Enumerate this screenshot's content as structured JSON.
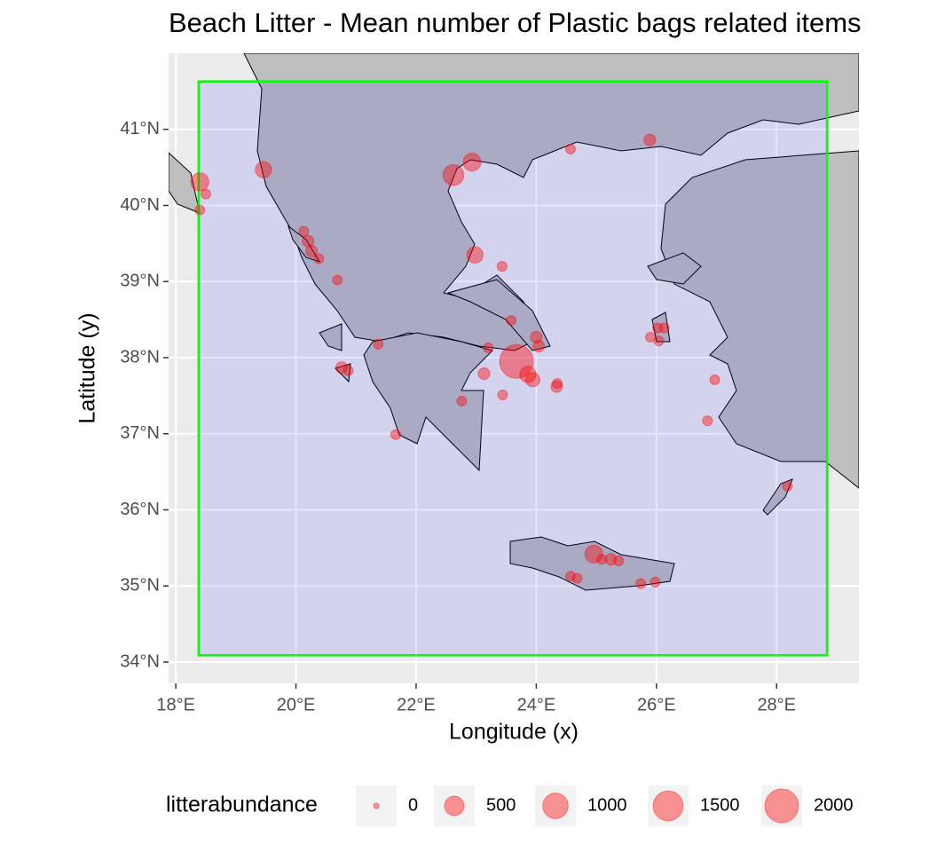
{
  "chart_data": {
    "type": "scatter",
    "title": "Beach Litter - Mean number of Plastic bags related items",
    "x_label": "Longitude (x)",
    "y_label": "Latitude (y)",
    "xlim": [
      17.88,
      29.37
    ],
    "ylim": [
      33.72,
      42.0
    ],
    "xticks": [
      {
        "value": 18,
        "label": "18°E"
      },
      {
        "value": 20,
        "label": "20°E"
      },
      {
        "value": 22,
        "label": "22°E"
      },
      {
        "value": 24,
        "label": "24°E"
      },
      {
        "value": 26,
        "label": "26°E"
      },
      {
        "value": 28,
        "label": "28°E"
      }
    ],
    "yticks": [
      {
        "value": 34,
        "label": "34°N"
      },
      {
        "value": 35,
        "label": "35°N"
      },
      {
        "value": 36,
        "label": "36°N"
      },
      {
        "value": 37,
        "label": "37°N"
      },
      {
        "value": 38,
        "label": "38°N"
      },
      {
        "value": 39,
        "label": "39°N"
      },
      {
        "value": 40,
        "label": "40°N"
      },
      {
        "value": 41,
        "label": "41°N"
      }
    ],
    "grid": true,
    "bbox": {
      "xlim": [
        18.38,
        28.84
      ],
      "ylim": [
        34.09,
        41.63
      ],
      "color": "#00ff00"
    },
    "color": "#ff0000",
    "x": [
      18.4,
      18.5,
      18.4,
      19.46,
      22.62,
      22.93,
      24.57,
      25.89,
      20.13,
      20.2,
      20.26,
      20.38,
      20.69,
      22.98,
      23.43,
      23.58,
      21.37,
      20.76,
      20.87,
      21.66,
      22.76,
      23.2,
      23.13,
      23.67,
      23.86,
      23.94,
      24.0,
      24.04,
      23.44,
      24.34,
      24.35,
      25.9,
      26.04,
      26.02,
      26.13,
      26.97,
      26.85,
      28.18,
      24.96,
      25.09,
      25.24,
      25.37,
      24.57,
      24.68,
      25.74,
      25.98
    ],
    "y": [
      40.31,
      40.15,
      39.94,
      40.47,
      40.4,
      40.57,
      40.74,
      40.86,
      39.66,
      39.53,
      39.4,
      39.3,
      39.02,
      39.35,
      39.2,
      38.49,
      38.18,
      37.87,
      37.83,
      36.99,
      37.43,
      38.13,
      37.79,
      37.95,
      37.78,
      37.71,
      38.27,
      38.15,
      37.51,
      37.62,
      37.66,
      38.27,
      38.22,
      38.39,
      38.39,
      37.71,
      37.17,
      36.31,
      35.42,
      35.35,
      35.35,
      35.33,
      35.13,
      35.1,
      35.03,
      35.05
    ],
    "sizes": [
      400,
      50,
      50,
      300,
      600,
      400,
      50,
      100,
      50,
      100,
      100,
      50,
      50,
      300,
      50,
      50,
      50,
      100,
      50,
      50,
      50,
      50,
      100,
      2000,
      300,
      200,
      100,
      100,
      50,
      100,
      50,
      50,
      50,
      50,
      50,
      50,
      50,
      50,
      400,
      50,
      100,
      50,
      50,
      50,
      50,
      50
    ],
    "size_legend": {
      "title": "litterabundance",
      "values": [
        0,
        500,
        1000,
        1500,
        2000
      ]
    }
  }
}
